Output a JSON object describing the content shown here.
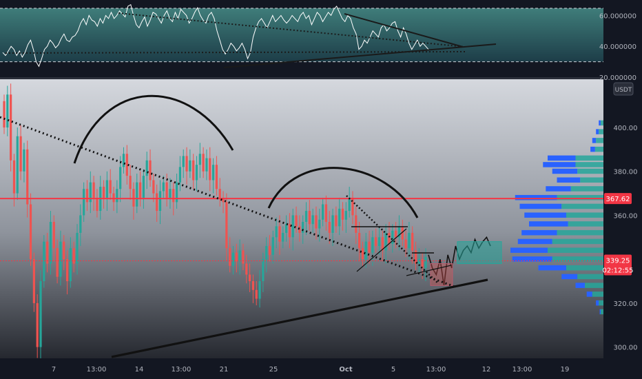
{
  "chart_data": {
    "type": "candlestick",
    "symbol_currency": "USDT",
    "indicator": {
      "type": "line",
      "y_ticks": [
        "60.000000",
        "40.000000",
        "20.000000"
      ],
      "ylim": [
        20,
        70
      ],
      "band": [
        30,
        70
      ],
      "values": [
        36,
        34,
        37,
        40,
        38,
        34,
        37,
        33,
        36,
        41,
        44,
        38,
        30,
        27,
        32,
        38,
        40,
        44,
        42,
        39,
        41,
        45,
        48,
        44,
        43,
        46,
        47,
        50,
        55,
        58,
        54,
        60,
        57,
        56,
        53,
        58,
        55,
        60,
        58,
        62,
        58,
        60,
        63,
        61,
        59,
        66,
        67,
        60,
        54,
        52,
        56,
        59,
        53,
        57,
        62,
        61,
        58,
        55,
        60,
        63,
        58,
        56,
        62,
        58,
        64,
        62,
        60,
        55,
        58,
        62,
        65,
        60,
        57,
        55,
        60,
        62,
        58,
        50,
        44,
        38,
        35,
        38,
        42,
        40,
        37,
        39,
        42,
        38,
        32,
        36,
        46,
        52,
        56,
        58,
        55,
        52,
        56,
        60,
        56,
        58,
        60,
        57,
        55,
        57,
        60,
        58,
        56,
        60,
        62,
        58,
        60,
        54,
        58,
        62,
        60,
        56,
        59,
        62,
        60,
        64,
        66,
        62,
        58,
        56,
        60,
        58,
        52,
        48,
        38,
        40,
        44,
        42,
        46,
        50,
        48,
        46,
        52,
        54,
        50,
        52,
        55,
        56,
        50,
        46,
        52,
        48,
        42,
        38,
        41,
        44,
        40,
        42,
        40,
        38
      ]
    },
    "price": {
      "y_ticks": [
        "400.00",
        "380.00",
        "360.00",
        "320.00",
        "300.00"
      ],
      "ylim": [
        295,
        420
      ],
      "candles": [
        [
          412,
          400
        ],
        [
          400,
          415
        ],
        [
          415,
          385
        ],
        [
          385,
          370
        ],
        [
          370,
          396
        ],
        [
          396,
          380
        ],
        [
          380,
          390
        ],
        [
          390,
          365
        ],
        [
          365,
          340
        ],
        [
          340,
          320
        ],
        [
          320,
          300
        ],
        [
          300,
          330
        ],
        [
          330,
          348
        ],
        [
          348,
          338
        ],
        [
          338,
          357
        ],
        [
          357,
          345
        ],
        [
          345,
          332
        ],
        [
          332,
          348
        ],
        [
          348,
          340
        ],
        [
          340,
          330
        ],
        [
          330,
          345
        ],
        [
          345,
          338
        ],
        [
          338,
          352
        ],
        [
          352,
          360
        ],
        [
          360,
          372
        ],
        [
          372,
          366
        ],
        [
          366,
          375
        ],
        [
          375,
          368
        ],
        [
          368,
          362
        ],
        [
          362,
          373
        ],
        [
          373,
          368
        ],
        [
          368,
          376
        ],
        [
          376,
          370
        ],
        [
          370,
          366
        ],
        [
          366,
          372
        ],
        [
          372,
          382
        ],
        [
          382,
          388
        ],
        [
          388,
          378
        ],
        [
          378,
          372
        ],
        [
          372,
          364
        ],
        [
          364,
          375
        ],
        [
          375,
          368
        ],
        [
          368,
          378
        ],
        [
          378,
          385
        ],
        [
          385,
          376
        ],
        [
          376,
          370
        ],
        [
          370,
          362
        ],
        [
          362,
          371
        ],
        [
          371,
          375
        ],
        [
          375,
          368
        ],
        [
          368,
          372
        ],
        [
          372,
          366
        ],
        [
          366,
          375
        ],
        [
          375,
          382
        ],
        [
          382,
          387
        ],
        [
          387,
          380
        ],
        [
          380,
          385
        ],
        [
          385,
          376
        ],
        [
          376,
          383
        ],
        [
          383,
          388
        ],
        [
          388,
          380
        ],
        [
          380,
          386
        ],
        [
          386,
          376
        ],
        [
          376,
          383
        ],
        [
          383,
          372
        ],
        [
          372,
          368
        ],
        [
          368,
          366
        ],
        [
          366,
          345
        ],
        [
          345,
          337
        ],
        [
          337,
          343
        ],
        [
          343,
          339
        ],
        [
          339,
          344
        ],
        [
          344,
          338
        ],
        [
          338,
          333
        ],
        [
          333,
          330
        ],
        [
          330,
          326
        ],
        [
          326,
          322
        ],
        [
          322,
          330
        ],
        [
          330,
          340
        ],
        [
          340,
          346
        ],
        [
          346,
          342
        ],
        [
          342,
          350
        ],
        [
          350,
          355
        ],
        [
          355,
          348
        ],
        [
          348,
          352
        ],
        [
          352,
          356
        ],
        [
          356,
          350
        ],
        [
          350,
          360
        ],
        [
          360,
          355
        ],
        [
          355,
          352
        ],
        [
          352,
          357
        ],
        [
          357,
          362
        ],
        [
          362,
          356
        ],
        [
          356,
          360
        ],
        [
          360,
          354
        ],
        [
          354,
          358
        ],
        [
          358,
          365
        ],
        [
          365,
          357
        ],
        [
          357,
          352
        ],
        [
          352,
          360
        ],
        [
          360,
          355
        ],
        [
          355,
          363
        ],
        [
          363,
          358
        ],
        [
          358,
          362
        ],
        [
          362,
          368
        ],
        [
          368,
          360
        ],
        [
          360,
          352
        ],
        [
          352,
          345
        ],
        [
          345,
          340
        ],
        [
          340,
          348
        ],
        [
          348,
          343
        ],
        [
          343,
          350
        ],
        [
          350,
          346
        ],
        [
          346,
          350
        ],
        [
          350,
          344
        ],
        [
          344,
          352
        ],
        [
          352,
          347
        ],
        [
          347,
          353
        ],
        [
          353,
          350
        ],
        [
          350,
          355
        ],
        [
          355,
          349
        ],
        [
          349,
          345
        ],
        [
          345,
          352
        ],
        [
          352,
          344
        ],
        [
          344,
          338
        ],
        [
          338,
          340
        ],
        [
          340,
          336
        ],
        [
          336,
          341
        ]
      ],
      "forecast_path": [
        342,
        336,
        333,
        340,
        328,
        342,
        336,
        346,
        340,
        344,
        346,
        343,
        349,
        345,
        348,
        350,
        346
      ],
      "current_price_label": "339.25",
      "countdown_label": "02:12:55",
      "level_label": "367.62",
      "level_price": 367.62,
      "current_price": 339.25,
      "volume_profile": [
        {
          "price": 402,
          "total": 5,
          "buy": 3
        },
        {
          "price": 398,
          "total": 8,
          "buy": 5
        },
        {
          "price": 394,
          "total": 12,
          "buy": 8
        },
        {
          "price": 390,
          "total": 14,
          "buy": 9
        },
        {
          "price": 386,
          "total": 60,
          "buy": 30
        },
        {
          "price": 383,
          "total": 65,
          "buy": 30
        },
        {
          "price": 380,
          "total": 55,
          "buy": 28
        },
        {
          "price": 376,
          "total": 50,
          "buy": 25
        },
        {
          "price": 372,
          "total": 62,
          "buy": 35
        },
        {
          "price": 368,
          "total": 95,
          "buy": 50
        },
        {
          "price": 364,
          "total": 90,
          "buy": 45
        },
        {
          "price": 360,
          "total": 85,
          "buy": 40
        },
        {
          "price": 356,
          "total": 80,
          "buy": 38
        },
        {
          "price": 352,
          "total": 88,
          "buy": 50
        },
        {
          "price": 348,
          "total": 92,
          "buy": 55
        },
        {
          "price": 344,
          "total": 100,
          "buy": 60
        },
        {
          "price": 340,
          "total": 98,
          "buy": 55
        },
        {
          "price": 336,
          "total": 70,
          "buy": 40
        },
        {
          "price": 332,
          "total": 45,
          "buy": 28
        },
        {
          "price": 328,
          "total": 30,
          "buy": 20
        },
        {
          "price": 324,
          "total": 18,
          "buy": 12
        },
        {
          "price": 320,
          "total": 8,
          "buy": 5
        },
        {
          "price": 316,
          "total": 4,
          "buy": 3
        }
      ]
    },
    "x_labels": [
      "7",
      "13:00",
      "14",
      "13:00",
      "21",
      "25",
      "Oct",
      "5",
      "13:00",
      "12",
      "13:00",
      "19"
    ],
    "x_label_bold": "Oct",
    "colors": {
      "up": "#26a69a",
      "down": "#ef5350",
      "level_line": "#f23645",
      "forecast_box": "#26a69a",
      "vp_buy": "#2962ff",
      "vp_sell": "#26a69a",
      "price_tag": "#f23645"
    }
  }
}
